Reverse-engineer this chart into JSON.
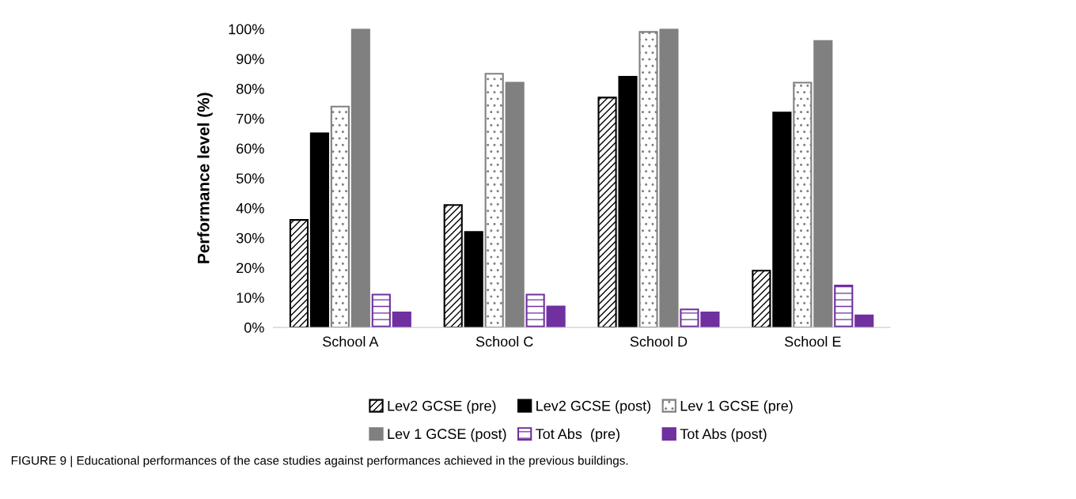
{
  "chart_data": {
    "type": "bar",
    "ylabel": "Performance level (%)",
    "categories": [
      "School A",
      "School C",
      "School D",
      "School E"
    ],
    "series": [
      {
        "name": "Lev2 GCSE (pre)",
        "color": "#000000",
        "values": [
          36,
          41,
          77,
          19
        ]
      },
      {
        "name": "Lev2 GCSE (post)",
        "color": "#000000",
        "values": [
          65,
          32,
          84,
          72
        ]
      },
      {
        "name": "Lev 1 GCSE (pre)",
        "color": "#808080",
        "values": [
          74,
          85,
          99,
          82
        ]
      },
      {
        "name": "Lev 1 GCSE (post)",
        "color": "#808080",
        "values": [
          100,
          82,
          100,
          96
        ]
      },
      {
        "name": "Tot Abs  (pre)",
        "color": "#7030a0",
        "values": [
          11,
          11,
          6,
          14
        ]
      },
      {
        "name": "Tot Abs (post)",
        "color": "#7030a0",
        "values": [
          5,
          7,
          5,
          4
        ]
      }
    ],
    "ylim": [
      0,
      100
    ],
    "yticks": [
      {
        "value": 0,
        "label": "0%"
      },
      {
        "value": 10,
        "label": "10%"
      },
      {
        "value": 20,
        "label": "20%"
      },
      {
        "value": 30,
        "label": "30%"
      },
      {
        "value": 40,
        "label": "40%"
      },
      {
        "value": 50,
        "label": "50%"
      },
      {
        "value": 60,
        "label": "60%"
      },
      {
        "value": 70,
        "label": "70%"
      },
      {
        "value": 80,
        "label": "80%"
      },
      {
        "value": 90,
        "label": "90%"
      },
      {
        "value": 100,
        "label": "100%"
      }
    ],
    "grid": false,
    "legend": "bottom",
    "annotations": [
      "FIGURE 9 | Educational performances of the case studies against performances achieved in the previous buildings."
    ]
  }
}
